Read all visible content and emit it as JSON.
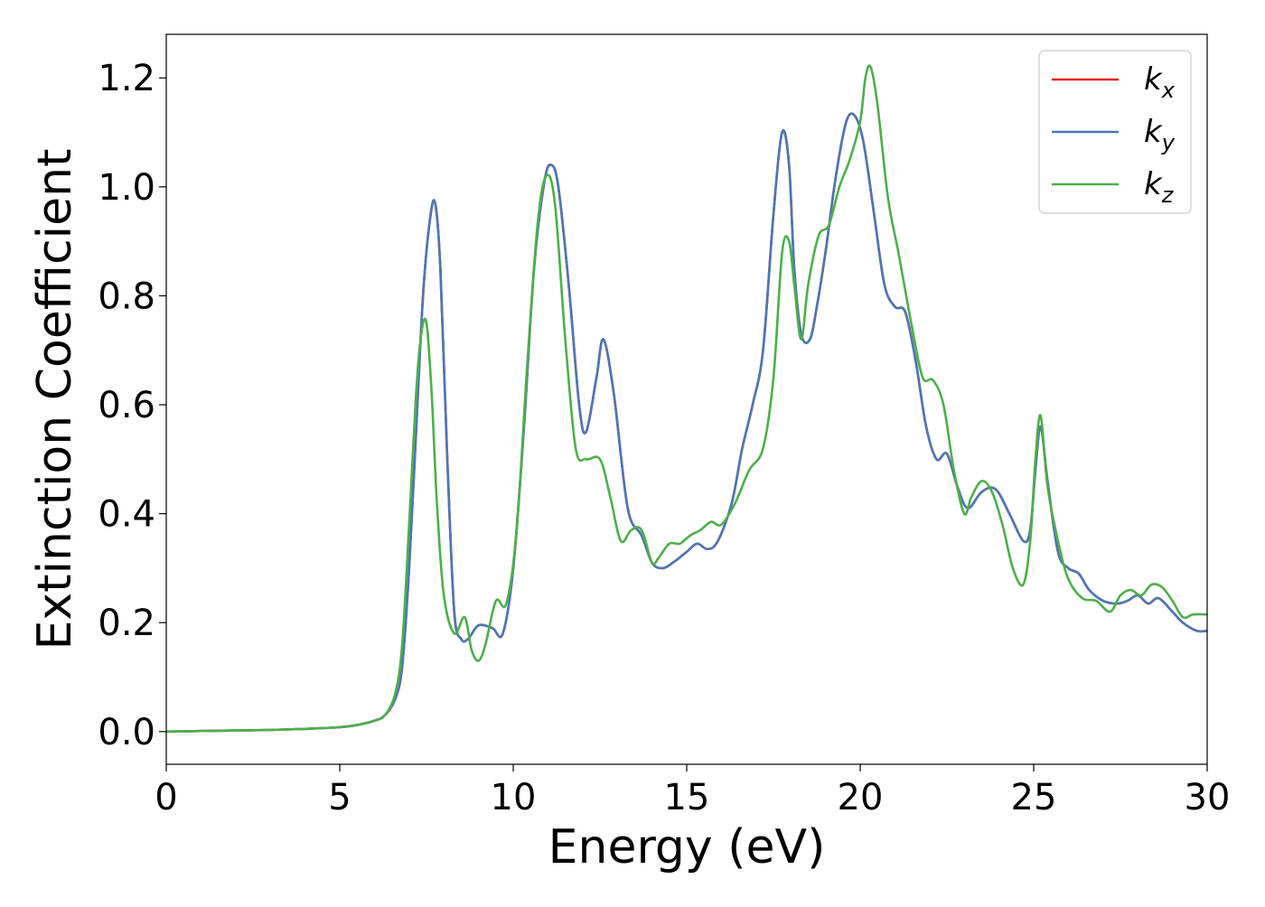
{
  "chart_data": {
    "type": "line",
    "title": "",
    "xlabel": "Energy (eV)",
    "ylabel": "Extinction Coefficient",
    "xlim": [
      0,
      30
    ],
    "ylim": [
      -0.06,
      1.28
    ],
    "xticks": [
      0,
      5,
      10,
      15,
      20,
      25,
      30
    ],
    "xtick_labels": [
      "0",
      "5",
      "10",
      "15",
      "20",
      "25",
      "30"
    ],
    "yticks": [
      0.0,
      0.2,
      0.4,
      0.6,
      0.8,
      1.0,
      1.2
    ],
    "ytick_labels": [
      "0.0",
      "0.2",
      "0.4",
      "0.6",
      "0.8",
      "1.0",
      "1.2"
    ],
    "grid": false,
    "legend_position": "top-right",
    "series": [
      {
        "name": "k",
        "subscript": "x",
        "color": "#e41a1c",
        "x": [
          0,
          1,
          2,
          3,
          4,
          5,
          5.5,
          6,
          6.3,
          6.6,
          6.8,
          7.0,
          7.2,
          7.4,
          7.6,
          7.75,
          7.9,
          8.1,
          8.3,
          8.5,
          8.7,
          9.0,
          9.4,
          9.7,
          10.0,
          10.3,
          10.6,
          10.9,
          11.1,
          11.3,
          11.6,
          11.9,
          12.1,
          12.4,
          12.6,
          12.9,
          13.3,
          13.7,
          14.0,
          14.3,
          14.6,
          15.0,
          15.3,
          15.6,
          15.9,
          16.3,
          16.6,
          16.9,
          17.2,
          17.5,
          17.75,
          17.95,
          18.1,
          18.3,
          18.55,
          18.75,
          19.0,
          19.3,
          19.6,
          19.85,
          20.1,
          20.4,
          20.7,
          21.0,
          21.3,
          21.6,
          21.9,
          22.2,
          22.5,
          22.8,
          23.1,
          23.5,
          23.9,
          24.3,
          24.7,
          24.9,
          25.05,
          25.2,
          25.4,
          25.7,
          26.0,
          26.3,
          26.6,
          27.0,
          27.4,
          27.7,
          28.0,
          28.3,
          28.6,
          29.0,
          29.3,
          29.7,
          30.0
        ],
        "y": [
          0.0,
          0.001,
          0.002,
          0.003,
          0.005,
          0.008,
          0.012,
          0.02,
          0.03,
          0.06,
          0.12,
          0.3,
          0.55,
          0.8,
          0.94,
          0.97,
          0.85,
          0.5,
          0.22,
          0.17,
          0.17,
          0.195,
          0.19,
          0.18,
          0.3,
          0.55,
          0.85,
          1.01,
          1.04,
          1.0,
          0.82,
          0.6,
          0.55,
          0.65,
          0.72,
          0.62,
          0.41,
          0.36,
          0.31,
          0.3,
          0.31,
          0.33,
          0.345,
          0.335,
          0.35,
          0.42,
          0.52,
          0.6,
          0.7,
          0.95,
          1.1,
          1.04,
          0.85,
          0.73,
          0.72,
          0.78,
          0.88,
          1.02,
          1.12,
          1.13,
          1.08,
          0.95,
          0.82,
          0.78,
          0.77,
          0.68,
          0.56,
          0.5,
          0.51,
          0.45,
          0.41,
          0.44,
          0.445,
          0.4,
          0.35,
          0.37,
          0.48,
          0.56,
          0.46,
          0.33,
          0.3,
          0.29,
          0.26,
          0.24,
          0.235,
          0.24,
          0.25,
          0.235,
          0.245,
          0.22,
          0.2,
          0.185,
          0.185
        ]
      },
      {
        "name": "k",
        "subscript": "y",
        "color": "#4a78b5",
        "x": [
          0,
          1,
          2,
          3,
          4,
          5,
          5.5,
          6,
          6.3,
          6.6,
          6.8,
          7.0,
          7.2,
          7.4,
          7.6,
          7.75,
          7.9,
          8.1,
          8.3,
          8.5,
          8.7,
          9.0,
          9.4,
          9.7,
          10.0,
          10.3,
          10.6,
          10.9,
          11.1,
          11.3,
          11.6,
          11.9,
          12.1,
          12.4,
          12.6,
          12.9,
          13.3,
          13.7,
          14.0,
          14.3,
          14.6,
          15.0,
          15.3,
          15.6,
          15.9,
          16.3,
          16.6,
          16.9,
          17.2,
          17.5,
          17.75,
          17.95,
          18.1,
          18.3,
          18.55,
          18.75,
          19.0,
          19.3,
          19.6,
          19.85,
          20.1,
          20.4,
          20.7,
          21.0,
          21.3,
          21.6,
          21.9,
          22.2,
          22.5,
          22.8,
          23.1,
          23.5,
          23.9,
          24.3,
          24.7,
          24.9,
          25.05,
          25.2,
          25.4,
          25.7,
          26.0,
          26.3,
          26.6,
          27.0,
          27.4,
          27.7,
          28.0,
          28.3,
          28.6,
          29.0,
          29.3,
          29.7,
          30.0
        ],
        "y": [
          0.0,
          0.001,
          0.002,
          0.003,
          0.005,
          0.008,
          0.012,
          0.02,
          0.03,
          0.06,
          0.12,
          0.3,
          0.55,
          0.8,
          0.94,
          0.97,
          0.85,
          0.5,
          0.22,
          0.17,
          0.17,
          0.195,
          0.19,
          0.18,
          0.3,
          0.55,
          0.85,
          1.01,
          1.04,
          1.0,
          0.82,
          0.6,
          0.55,
          0.65,
          0.72,
          0.62,
          0.41,
          0.36,
          0.31,
          0.3,
          0.31,
          0.33,
          0.345,
          0.335,
          0.35,
          0.42,
          0.52,
          0.6,
          0.7,
          0.95,
          1.1,
          1.04,
          0.85,
          0.73,
          0.72,
          0.78,
          0.88,
          1.02,
          1.12,
          1.13,
          1.08,
          0.95,
          0.82,
          0.78,
          0.77,
          0.68,
          0.56,
          0.5,
          0.51,
          0.45,
          0.41,
          0.44,
          0.445,
          0.4,
          0.35,
          0.37,
          0.48,
          0.56,
          0.46,
          0.33,
          0.3,
          0.29,
          0.26,
          0.24,
          0.235,
          0.24,
          0.25,
          0.235,
          0.245,
          0.22,
          0.2,
          0.185,
          0.185
        ]
      },
      {
        "name": "k",
        "subscript": "z",
        "color": "#4daf4a",
        "x": [
          0,
          1,
          2,
          3,
          4,
          5,
          5.5,
          6,
          6.3,
          6.6,
          6.8,
          7.0,
          7.2,
          7.35,
          7.5,
          7.65,
          7.8,
          8.0,
          8.3,
          8.6,
          8.8,
          9.0,
          9.2,
          9.5,
          9.8,
          10.1,
          10.4,
          10.7,
          10.95,
          11.2,
          11.5,
          11.8,
          12.1,
          12.5,
          12.8,
          13.1,
          13.4,
          13.7,
          14.0,
          14.2,
          14.5,
          14.8,
          15.1,
          15.4,
          15.7,
          16.0,
          16.4,
          16.8,
          17.2,
          17.5,
          17.75,
          17.95,
          18.1,
          18.3,
          18.5,
          18.8,
          19.1,
          19.4,
          19.7,
          20.0,
          20.15,
          20.3,
          20.5,
          20.8,
          21.1,
          21.5,
          21.8,
          22.1,
          22.4,
          22.7,
          23.0,
          23.2,
          23.5,
          23.8,
          24.1,
          24.4,
          24.7,
          24.9,
          25.05,
          25.2,
          25.4,
          25.7,
          26.0,
          26.4,
          26.8,
          27.2,
          27.5,
          27.8,
          28.1,
          28.4,
          28.7,
          29.0,
          29.3,
          29.6,
          30.0
        ],
        "y": [
          0.0,
          0.001,
          0.002,
          0.003,
          0.005,
          0.008,
          0.012,
          0.02,
          0.03,
          0.07,
          0.16,
          0.38,
          0.62,
          0.73,
          0.75,
          0.62,
          0.42,
          0.25,
          0.18,
          0.21,
          0.15,
          0.13,
          0.16,
          0.24,
          0.235,
          0.37,
          0.67,
          0.93,
          1.02,
          0.97,
          0.72,
          0.52,
          0.5,
          0.5,
          0.43,
          0.35,
          0.37,
          0.37,
          0.31,
          0.32,
          0.345,
          0.345,
          0.36,
          0.37,
          0.385,
          0.38,
          0.42,
          0.48,
          0.52,
          0.65,
          0.88,
          0.9,
          0.82,
          0.72,
          0.82,
          0.91,
          0.93,
          1.0,
          1.05,
          1.12,
          1.2,
          1.22,
          1.15,
          0.98,
          0.88,
          0.74,
          0.65,
          0.645,
          0.6,
          0.48,
          0.4,
          0.43,
          0.46,
          0.44,
          0.38,
          0.3,
          0.27,
          0.35,
          0.5,
          0.58,
          0.45,
          0.35,
          0.28,
          0.245,
          0.24,
          0.22,
          0.25,
          0.26,
          0.25,
          0.27,
          0.265,
          0.24,
          0.21,
          0.215,
          0.215
        ]
      }
    ]
  }
}
